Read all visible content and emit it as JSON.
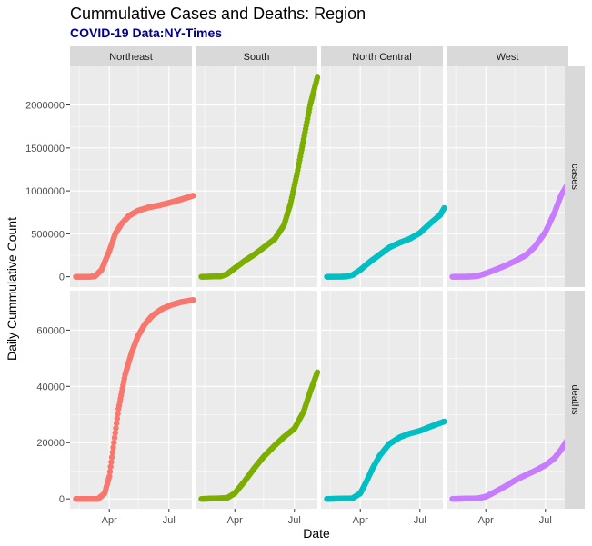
{
  "chart_data": {
    "type": "scatter",
    "title": "Cummulative Cases and Deaths: Region",
    "subtitle": "COVID-19 Data:NY-Times",
    "xlabel": "Date",
    "ylabel": "Daily Cummulative Count",
    "x_tick_labels": [
      "Apr",
      "Jul"
    ],
    "x_range": [
      "2020-02-01",
      "2020-08-05"
    ],
    "columns": [
      "Northeast",
      "South",
      "North Central",
      "West"
    ],
    "rows": [
      "cases",
      "deaths"
    ],
    "grid": true,
    "legend": "none",
    "colors": {
      "Northeast": "#F8766D",
      "South": "#7CAE00",
      "North Central": "#00BFC4",
      "West": "#C77CFF",
      "panel_bg": "#EBEBEB",
      "strip_bg": "#D9D9D9",
      "grid": "#FFFFFF"
    },
    "y_axes": {
      "cases": {
        "ylim": [
          -120000,
          2450000
        ],
        "ticks": [
          0,
          500000,
          1000000,
          1500000,
          2000000
        ],
        "tick_labels": [
          "0",
          "500000",
          "1000000",
          "1500000",
          "2000000"
        ]
      },
      "deaths": {
        "ylim": [
          -3500,
          74000
        ],
        "ticks": [
          0,
          20000,
          40000,
          60000
        ],
        "tick_labels": [
          "0",
          "20000",
          "40000",
          "60000"
        ]
      }
    },
    "series": {
      "cases": {
        "Northeast": [
          [
            "2020-02-10",
            0
          ],
          [
            "2020-03-01",
            0
          ],
          [
            "2020-03-10",
            5000
          ],
          [
            "2020-03-20",
            80000
          ],
          [
            "2020-04-01",
            300000
          ],
          [
            "2020-04-10",
            500000
          ],
          [
            "2020-04-20",
            620000
          ],
          [
            "2020-05-01",
            710000
          ],
          [
            "2020-05-15",
            770000
          ],
          [
            "2020-06-01",
            810000
          ],
          [
            "2020-06-15",
            830000
          ],
          [
            "2020-07-01",
            860000
          ],
          [
            "2020-07-15",
            890000
          ],
          [
            "2020-08-01",
            930000
          ],
          [
            "2020-08-07",
            945000
          ]
        ],
        "South": [
          [
            "2020-02-10",
            0
          ],
          [
            "2020-03-10",
            5000
          ],
          [
            "2020-03-20",
            30000
          ],
          [
            "2020-04-01",
            100000
          ],
          [
            "2020-04-15",
            180000
          ],
          [
            "2020-05-01",
            260000
          ],
          [
            "2020-05-15",
            340000
          ],
          [
            "2020-06-01",
            440000
          ],
          [
            "2020-06-15",
            600000
          ],
          [
            "2020-06-25",
            850000
          ],
          [
            "2020-07-05",
            1200000
          ],
          [
            "2020-07-15",
            1600000
          ],
          [
            "2020-07-25",
            2000000
          ],
          [
            "2020-08-05",
            2320000
          ]
        ],
        "North Central": [
          [
            "2020-02-10",
            0
          ],
          [
            "2020-03-10",
            2000
          ],
          [
            "2020-03-20",
            20000
          ],
          [
            "2020-04-01",
            80000
          ],
          [
            "2020-04-15",
            170000
          ],
          [
            "2020-05-01",
            260000
          ],
          [
            "2020-05-15",
            340000
          ],
          [
            "2020-06-01",
            400000
          ],
          [
            "2020-06-15",
            440000
          ],
          [
            "2020-07-01",
            510000
          ],
          [
            "2020-07-15",
            610000
          ],
          [
            "2020-08-01",
            720000
          ],
          [
            "2020-08-07",
            800000
          ]
        ],
        "West": [
          [
            "2020-02-10",
            0
          ],
          [
            "2020-03-10",
            2000
          ],
          [
            "2020-03-20",
            10000
          ],
          [
            "2020-04-01",
            40000
          ],
          [
            "2020-04-15",
            80000
          ],
          [
            "2020-05-01",
            130000
          ],
          [
            "2020-05-15",
            180000
          ],
          [
            "2020-06-01",
            250000
          ],
          [
            "2020-06-15",
            350000
          ],
          [
            "2020-07-01",
            520000
          ],
          [
            "2020-07-15",
            750000
          ],
          [
            "2020-07-25",
            950000
          ],
          [
            "2020-08-05",
            1090000
          ]
        ]
      },
      "deaths": {
        "Northeast": [
          [
            "2020-02-10",
            0
          ],
          [
            "2020-03-15",
            0
          ],
          [
            "2020-03-25",
            2000
          ],
          [
            "2020-04-01",
            8000
          ],
          [
            "2020-04-08",
            20000
          ],
          [
            "2020-04-15",
            32000
          ],
          [
            "2020-04-25",
            44000
          ],
          [
            "2020-05-05",
            52000
          ],
          [
            "2020-05-15",
            58000
          ],
          [
            "2020-05-25",
            62000
          ],
          [
            "2020-06-05",
            65000
          ],
          [
            "2020-06-20",
            67500
          ],
          [
            "2020-07-05",
            69000
          ],
          [
            "2020-07-20",
            70000
          ],
          [
            "2020-08-07",
            70700
          ]
        ],
        "South": [
          [
            "2020-02-10",
            0
          ],
          [
            "2020-03-20",
            300
          ],
          [
            "2020-04-01",
            2000
          ],
          [
            "2020-04-15",
            6000
          ],
          [
            "2020-05-01",
            11000
          ],
          [
            "2020-05-15",
            15000
          ],
          [
            "2020-06-01",
            19000
          ],
          [
            "2020-06-15",
            22000
          ],
          [
            "2020-07-01",
            25000
          ],
          [
            "2020-07-15",
            31000
          ],
          [
            "2020-07-25",
            38000
          ],
          [
            "2020-08-05",
            45000
          ]
        ],
        "North Central": [
          [
            "2020-02-10",
            0
          ],
          [
            "2020-03-20",
            200
          ],
          [
            "2020-04-01",
            2000
          ],
          [
            "2020-04-10",
            6000
          ],
          [
            "2020-04-20",
            11000
          ],
          [
            "2020-05-01",
            15500
          ],
          [
            "2020-05-15",
            19500
          ],
          [
            "2020-06-01",
            22000
          ],
          [
            "2020-06-15",
            23200
          ],
          [
            "2020-07-01",
            24200
          ],
          [
            "2020-07-15",
            25500
          ],
          [
            "2020-08-01",
            27000
          ],
          [
            "2020-08-07",
            27500
          ]
        ],
        "West": [
          [
            "2020-02-10",
            0
          ],
          [
            "2020-03-20",
            200
          ],
          [
            "2020-04-01",
            800
          ],
          [
            "2020-04-15",
            2500
          ],
          [
            "2020-05-01",
            4500
          ],
          [
            "2020-05-15",
            6500
          ],
          [
            "2020-06-01",
            8500
          ],
          [
            "2020-06-15",
            10000
          ],
          [
            "2020-07-01",
            12000
          ],
          [
            "2020-07-15",
            14500
          ],
          [
            "2020-07-25",
            17500
          ],
          [
            "2020-08-05",
            21500
          ]
        ]
      }
    }
  }
}
